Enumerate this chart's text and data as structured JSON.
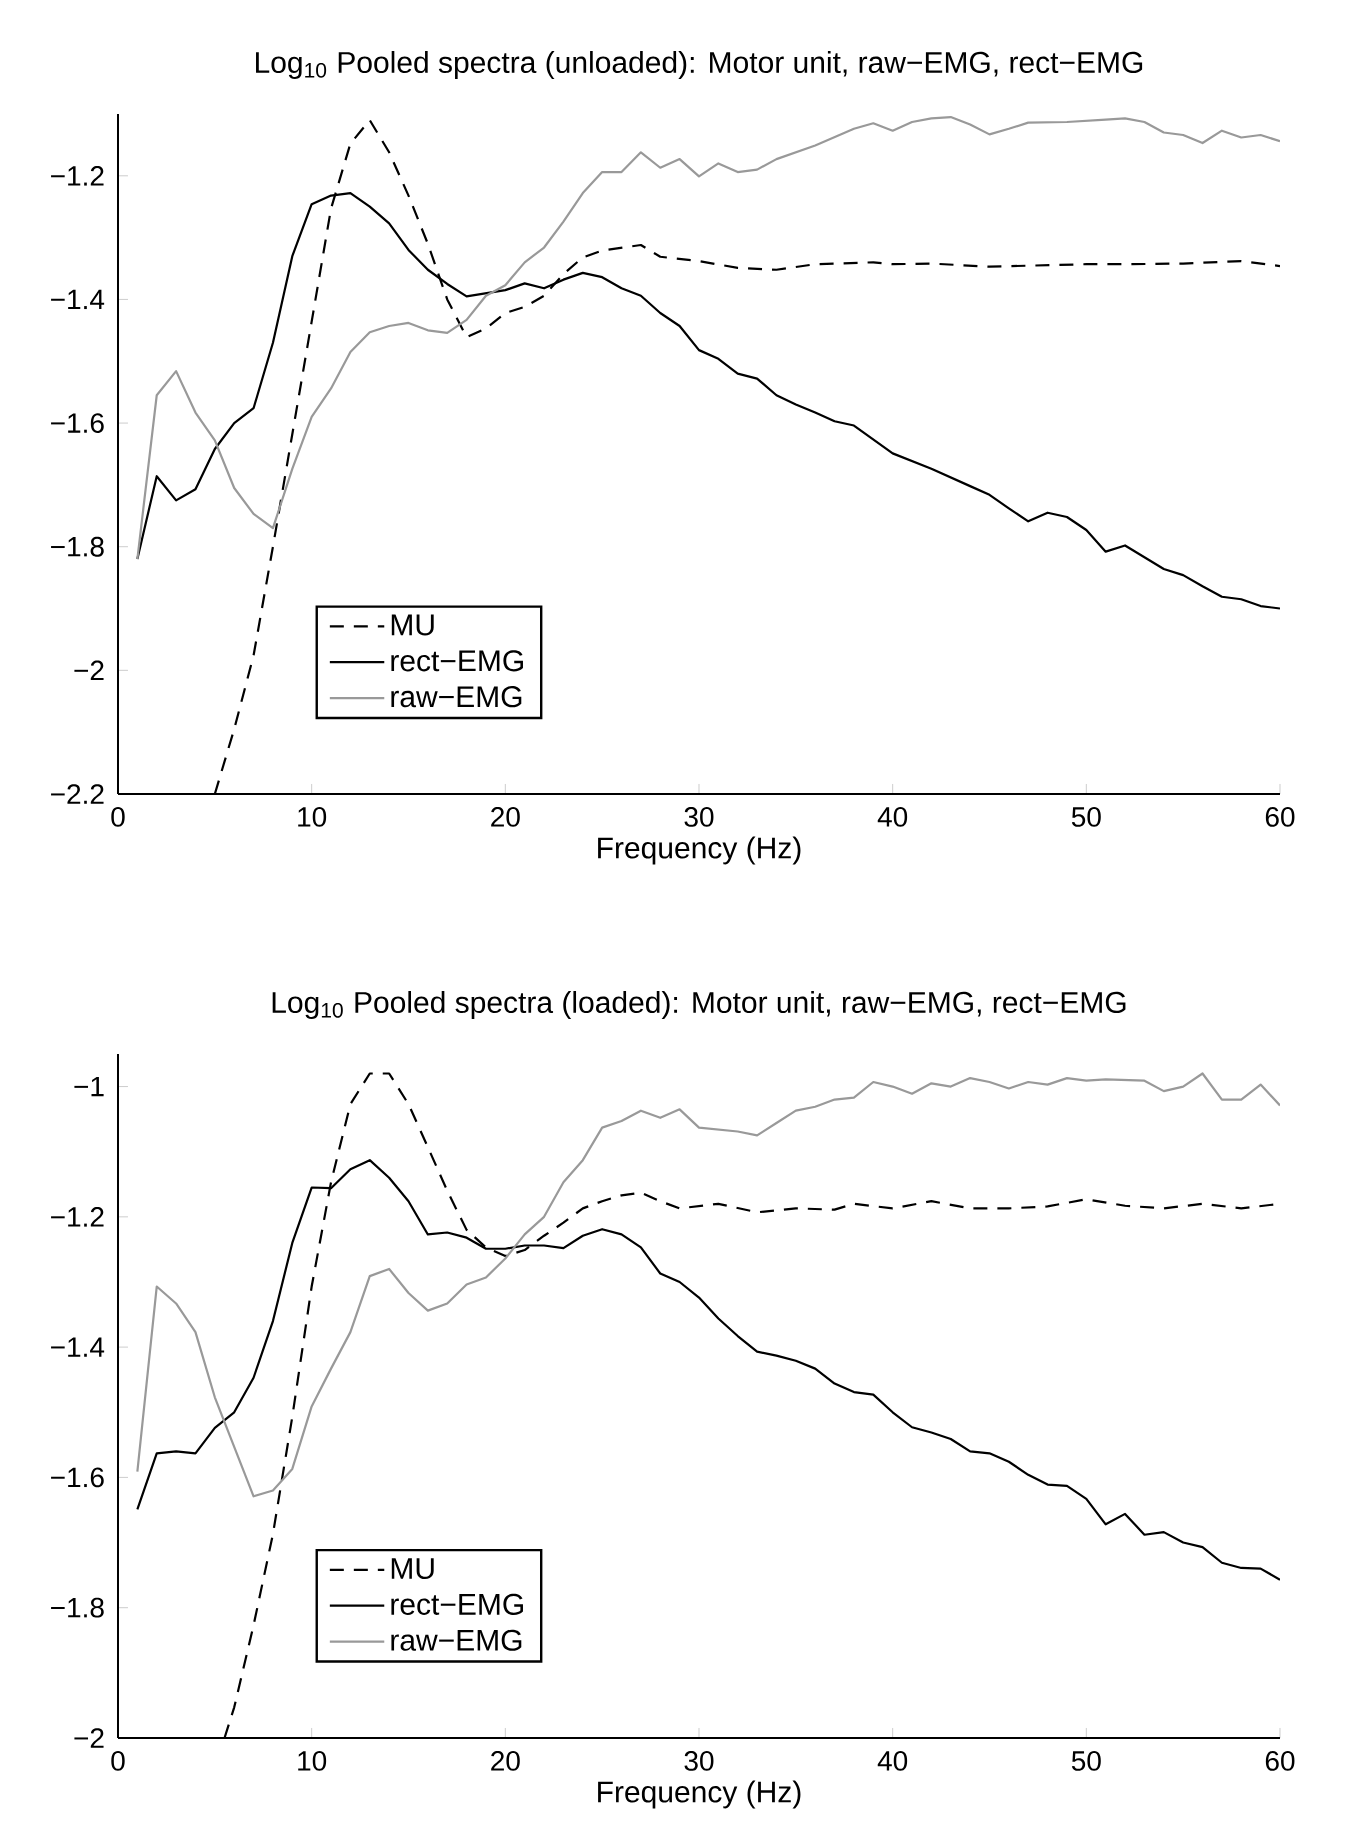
{
  "chart_data": [
    {
      "type": "line",
      "title": "Log$_{10}$ Pooled spectra (unloaded): Motor unit, raw−EMG, rect−EMG",
      "xlabel": "Frequency (Hz)",
      "xlim": [
        0,
        60
      ],
      "xticks": [
        0,
        10,
        20,
        30,
        40,
        50,
        60
      ],
      "ylim": [
        -2.2,
        -1.1
      ],
      "yticks": [
        {
          "value": -2.2,
          "label": "−2.2"
        },
        {
          "value": -2,
          "label": "−2"
        },
        {
          "value": -1.8,
          "label": "−1.8"
        },
        {
          "value": -1.6,
          "label": "−1.6"
        },
        {
          "value": -1.4,
          "label": "−1.4"
        },
        {
          "value": -1.2,
          "label": "−1.2"
        }
      ],
      "legend": "bottom left",
      "grid": false,
      "series": [
        {
          "name": "MU",
          "color": "#000000",
          "line_style": "dashed",
          "x": [
            5,
            6,
            7,
            8,
            9,
            10,
            11,
            12,
            13,
            14,
            15,
            16,
            17,
            18,
            19,
            20,
            21,
            22,
            23,
            24,
            25,
            27,
            28,
            30,
            32,
            34,
            36,
            39,
            40,
            42,
            45,
            50,
            52,
            55,
            58,
            60
          ],
          "values": [
            -2.2,
            -2.095,
            -1.976,
            -1.8,
            -1.618,
            -1.436,
            -1.253,
            -1.148,
            -1.11,
            -1.162,
            -1.232,
            -1.31,
            -1.4,
            -1.461,
            -1.447,
            -1.422,
            -1.412,
            -1.394,
            -1.359,
            -1.332,
            -1.321,
            -1.312,
            -1.331,
            -1.338,
            -1.349,
            -1.352,
            -1.343,
            -1.34,
            -1.343,
            -1.342,
            -1.347,
            -1.343,
            -1.343,
            -1.342,
            -1.338,
            -1.346
          ]
        },
        {
          "name": "rect−EMG",
          "color": "#000000",
          "line_style": "solid",
          "x": [
            1,
            2,
            3,
            4,
            5,
            6,
            7,
            8,
            9,
            10,
            11,
            12,
            13,
            14,
            15,
            16,
            17,
            18,
            19,
            20,
            21,
            22,
            23,
            24,
            25,
            26,
            27,
            28,
            29,
            30,
            31,
            32,
            33,
            34,
            35,
            36,
            37,
            38,
            40,
            42,
            44,
            45,
            46,
            47,
            48,
            49,
            50,
            51,
            52,
            54,
            55,
            56,
            57,
            58,
            59,
            60
          ],
          "values": [
            -1.82,
            -1.686,
            -1.725,
            -1.707,
            -1.642,
            -1.6,
            -1.576,
            -1.47,
            -1.33,
            -1.246,
            -1.232,
            -1.228,
            -1.25,
            -1.277,
            -1.32,
            -1.352,
            -1.375,
            -1.395,
            -1.39,
            -1.385,
            -1.374,
            -1.382,
            -1.368,
            -1.357,
            -1.364,
            -1.382,
            -1.394,
            -1.422,
            -1.443,
            -1.482,
            -1.496,
            -1.52,
            -1.528,
            -1.555,
            -1.57,
            -1.583,
            -1.597,
            -1.604,
            -1.649,
            -1.674,
            -1.702,
            -1.716,
            -1.738,
            -1.759,
            -1.745,
            -1.752,
            -1.773,
            -1.808,
            -1.798,
            -1.836,
            -1.846,
            -1.864,
            -1.881,
            -1.885,
            -1.896,
            -1.9
          ]
        },
        {
          "name": "raw−EMG",
          "color": "#999999",
          "line_style": "solid",
          "x": [
            1,
            2,
            3,
            4,
            5,
            6,
            7,
            8,
            9,
            10,
            11,
            12,
            13,
            14,
            15,
            16,
            17,
            18,
            19,
            20,
            21,
            22,
            23,
            24,
            25,
            26,
            27,
            28,
            29,
            30,
            31,
            32,
            33,
            34,
            36,
            38,
            39,
            40,
            41,
            42,
            43,
            44,
            45,
            46,
            47,
            49,
            51,
            52,
            53,
            54,
            55,
            56,
            57,
            58,
            59,
            60
          ],
          "values": [
            -1.82,
            -1.555,
            -1.516,
            -1.583,
            -1.628,
            -1.705,
            -1.747,
            -1.77,
            -1.674,
            -1.59,
            -1.544,
            -1.485,
            -1.453,
            -1.443,
            -1.438,
            -1.45,
            -1.454,
            -1.433,
            -1.394,
            -1.377,
            -1.34,
            -1.316,
            -1.274,
            -1.228,
            -1.194,
            -1.194,
            -1.162,
            -1.187,
            -1.173,
            -1.201,
            -1.18,
            -1.194,
            -1.19,
            -1.173,
            -1.151,
            -1.124,
            -1.115,
            -1.127,
            -1.113,
            -1.107,
            -1.105,
            -1.117,
            -1.133,
            -1.124,
            -1.114,
            -1.113,
            -1.109,
            -1.107,
            -1.113,
            -1.13,
            -1.134,
            -1.147,
            -1.127,
            -1.138,
            -1.134,
            -1.144
          ]
        }
      ]
    },
    {
      "type": "line",
      "title": "Log$_{10}$ Pooled spectra (loaded): Motor unit, raw−EMG, rect−EMG",
      "xlabel": "Frequency (Hz)",
      "xlim": [
        0,
        60
      ],
      "xticks": [
        0,
        10,
        20,
        30,
        40,
        50,
        60
      ],
      "ylim": [
        -2,
        -0.95
      ],
      "yticks": [
        {
          "value": -2,
          "label": "−2"
        },
        {
          "value": -1.8,
          "label": "−1.8"
        },
        {
          "value": -1.6,
          "label": "−1.6"
        },
        {
          "value": -1.4,
          "label": "−1.4"
        },
        {
          "value": -1.2,
          "label": "−1.2"
        },
        {
          "value": -1,
          "label": "−1"
        }
      ],
      "legend": "bottom left",
      "grid": false,
      "series": [
        {
          "name": "MU",
          "color": "#000000",
          "line_style": "dashed",
          "x": [
            5.5,
            6,
            7,
            8,
            9,
            10,
            11,
            12,
            13,
            14,
            15,
            16,
            17,
            18,
            19,
            20,
            21,
            22,
            23,
            24,
            25,
            26,
            27,
            28,
            29,
            31,
            33,
            35,
            37,
            38,
            40,
            42,
            44,
            46,
            48,
            50,
            52,
            54,
            56,
            58,
            60
          ],
          "values": [
            -2,
            -1.953,
            -1.827,
            -1.687,
            -1.507,
            -1.307,
            -1.147,
            -1.027,
            -0.98,
            -0.98,
            -1.027,
            -1.093,
            -1.16,
            -1.22,
            -1.247,
            -1.26,
            -1.251,
            -1.229,
            -1.209,
            -1.187,
            -1.176,
            -1.167,
            -1.163,
            -1.176,
            -1.187,
            -1.18,
            -1.193,
            -1.187,
            -1.189,
            -1.18,
            -1.187,
            -1.176,
            -1.187,
            -1.187,
            -1.184,
            -1.173,
            -1.183,
            -1.187,
            -1.18,
            -1.187,
            -1.18
          ]
        },
        {
          "name": "rect−EMG",
          "color": "#000000",
          "line_style": "solid",
          "x": [
            1,
            2,
            3,
            4,
            5,
            6,
            7,
            8,
            9,
            10,
            11,
            12,
            13,
            14,
            15,
            16,
            17,
            18,
            19,
            20,
            21,
            22,
            23,
            24,
            25,
            26,
            27,
            28,
            29,
            30,
            31,
            32,
            33,
            34,
            35,
            36,
            37,
            38,
            39,
            40,
            41,
            42,
            43,
            44,
            45,
            46,
            47,
            48,
            49,
            50,
            51,
            52,
            53,
            54,
            55,
            56,
            57,
            58,
            59,
            60
          ],
          "values": [
            -1.649,
            -1.563,
            -1.56,
            -1.563,
            -1.524,
            -1.5,
            -1.447,
            -1.36,
            -1.24,
            -1.155,
            -1.156,
            -1.127,
            -1.113,
            -1.14,
            -1.176,
            -1.227,
            -1.224,
            -1.232,
            -1.249,
            -1.249,
            -1.244,
            -1.244,
            -1.248,
            -1.229,
            -1.219,
            -1.227,
            -1.247,
            -1.287,
            -1.3,
            -1.324,
            -1.356,
            -1.383,
            -1.407,
            -1.413,
            -1.421,
            -1.433,
            -1.456,
            -1.469,
            -1.473,
            -1.5,
            -1.523,
            -1.531,
            -1.541,
            -1.56,
            -1.563,
            -1.576,
            -1.596,
            -1.611,
            -1.613,
            -1.633,
            -1.672,
            -1.656,
            -1.688,
            -1.684,
            -1.7,
            -1.707,
            -1.731,
            -1.739,
            -1.74,
            -1.757
          ]
        },
        {
          "name": "raw−EMG",
          "color": "#999999",
          "line_style": "solid",
          "x": [
            1,
            2,
            3,
            4,
            5,
            6,
            7,
            8,
            9,
            10,
            11,
            12,
            13,
            14,
            15,
            16,
            17,
            18,
            19,
            20,
            21,
            22,
            23,
            24,
            25,
            26,
            27,
            28,
            29,
            30,
            32,
            33,
            34,
            35,
            36,
            37,
            38,
            39,
            40,
            41,
            42,
            43,
            44,
            45,
            46,
            47,
            48,
            49,
            50,
            51,
            53,
            54,
            55,
            56,
            57,
            58,
            59,
            60
          ],
          "values": [
            -1.591,
            -1.307,
            -1.333,
            -1.377,
            -1.477,
            -1.553,
            -1.629,
            -1.62,
            -1.587,
            -1.491,
            -1.433,
            -1.377,
            -1.291,
            -1.28,
            -1.317,
            -1.344,
            -1.333,
            -1.304,
            -1.293,
            -1.264,
            -1.227,
            -1.2,
            -1.147,
            -1.113,
            -1.063,
            -1.053,
            -1.037,
            -1.048,
            -1.035,
            -1.063,
            -1.069,
            -1.075,
            -1.056,
            -1.037,
            -1.031,
            -1.02,
            -1.017,
            -0.993,
            -1,
            -1.011,
            -0.995,
            -1,
            -0.987,
            -0.993,
            -1.003,
            -0.993,
            -0.997,
            -0.987,
            -0.991,
            -0.989,
            -0.991,
            -1.007,
            -1,
            -0.98,
            -1.02,
            -1.02,
            -0.997,
            -1.029
          ]
        }
      ]
    }
  ]
}
